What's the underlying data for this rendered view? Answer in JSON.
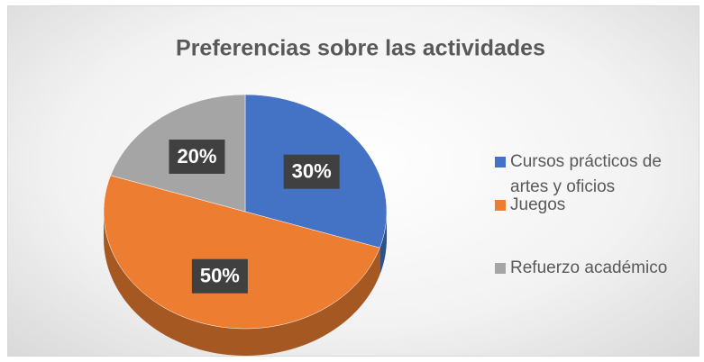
{
  "chart_data": {
    "type": "pie",
    "title": "Preferencias sobre las actividades",
    "categories": [
      "Cursos prácticos de artes y oficios",
      "Juegos",
      "Refuerzo académico"
    ],
    "values": [
      30,
      50,
      20
    ],
    "value_labels": [
      "30%",
      "50%",
      "20%"
    ],
    "colors": [
      "#4472c4",
      "#ed7d31",
      "#a5a5a5"
    ],
    "legend": "right"
  }
}
